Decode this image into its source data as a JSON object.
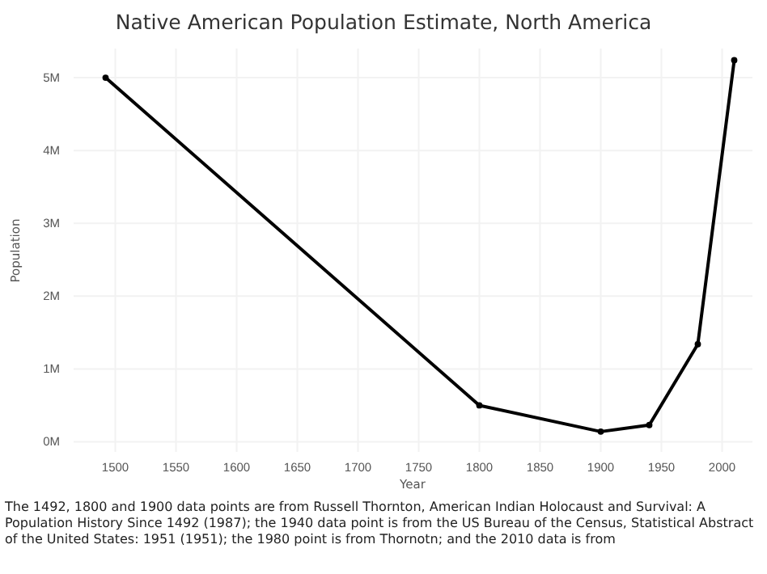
{
  "chart_data": {
    "type": "line",
    "title": "Native American Population Estimate, North America",
    "xlabel": "Year",
    "ylabel": "Population",
    "x": [
      1492,
      1800,
      1900,
      1940,
      1980,
      2010
    ],
    "series": [
      {
        "color": "#000000",
        "values": [
          5000000,
          500000,
          140000,
          230000,
          1340000,
          5240000
        ]
      }
    ],
    "xlim": [
      1465,
      2025
    ],
    "xticks": [
      1500,
      1550,
      1600,
      1650,
      1700,
      1750,
      1800,
      1850,
      1900,
      1950,
      2000
    ],
    "ylim": [
      -150000,
      5400000
    ],
    "yticks": [
      {
        "value": 0,
        "label": "0M"
      },
      {
        "value": 1000000,
        "label": "1M"
      },
      {
        "value": 2000000,
        "label": "2M"
      },
      {
        "value": 3000000,
        "label": "3M"
      },
      {
        "value": 4000000,
        "label": "4M"
      },
      {
        "value": 5000000,
        "label": "5M"
      }
    ],
    "grid": true,
    "marker": "circle",
    "line_style": "solid",
    "annotations": [
      "The 1492, 1800 and 1900 data points are from Russell Thornton, American Indian Holocaust and Survival: A Population History Since 1492 (1987); the 1940 data point is from the US Bureau of the Census, Statistical Abstract of the United States: 1951 (1951); the 1980 point is from Thornotn; and the 2010 data is from"
    ]
  }
}
